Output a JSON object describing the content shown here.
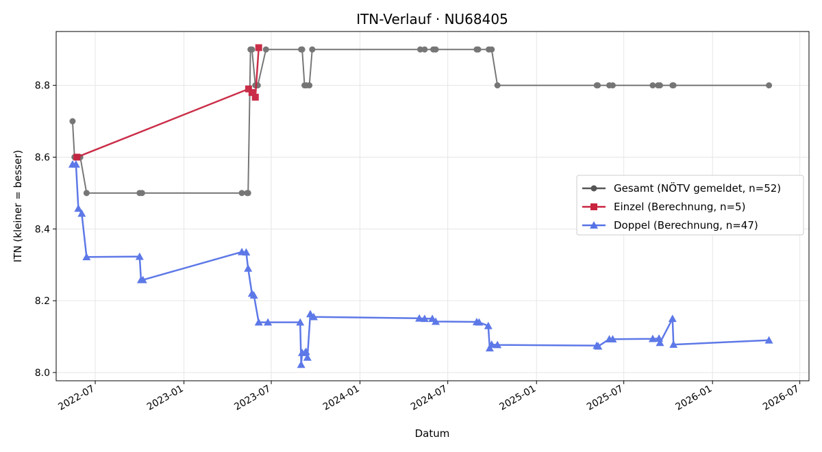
{
  "chart_data": {
    "type": "line",
    "title": "ITN-Verlauf · NU68405",
    "xlabel": "Datum",
    "ylabel": "ITN  (kleiner = besser)",
    "x_ticks": [
      "2022-07",
      "2023-01",
      "2023-07",
      "2024-01",
      "2024-07",
      "2025-01",
      "2025-07",
      "2026-01",
      "2026-07"
    ],
    "y_ticks": [
      "8.0",
      "8.2",
      "8.4",
      "8.6",
      "8.8"
    ],
    "xlim": [
      "2022-04-11",
      "2026-07-20"
    ],
    "ylim": [
      7.977,
      8.95
    ],
    "grid": true,
    "legend_position": "center-right",
    "series": [
      {
        "name": "Gesamt (NÖTV gemeldet, n=52)",
        "color": "#555555",
        "marker": "circle",
        "points": [
          [
            "2022-05-15",
            8.7
          ],
          [
            "2022-05-19",
            8.6
          ],
          [
            "2022-05-23",
            8.6
          ],
          [
            "2022-05-27",
            8.6
          ],
          [
            "2022-05-31",
            8.6
          ],
          [
            "2022-06-13",
            8.5
          ],
          [
            "2022-10-01",
            8.5
          ],
          [
            "2022-10-06",
            8.5
          ],
          [
            "2023-05-01",
            8.5
          ],
          [
            "2023-05-12",
            8.5
          ],
          [
            "2023-05-14",
            8.5
          ],
          [
            "2023-05-19",
            8.9
          ],
          [
            "2023-05-22",
            8.9
          ],
          [
            "2023-05-29",
            8.8
          ],
          [
            "2023-06-03",
            8.8
          ],
          [
            "2023-06-20",
            8.9
          ],
          [
            "2023-09-01",
            8.9
          ],
          [
            "2023-09-03",
            8.9
          ],
          [
            "2023-09-08",
            8.8
          ],
          [
            "2023-09-12",
            8.8
          ],
          [
            "2023-09-18",
            8.8
          ],
          [
            "2023-09-24",
            8.9
          ],
          [
            "2024-05-05",
            8.9
          ],
          [
            "2024-05-14",
            8.9
          ],
          [
            "2024-06-01",
            8.9
          ],
          [
            "2024-06-06",
            8.9
          ],
          [
            "2024-08-30",
            8.9
          ],
          [
            "2024-09-02",
            8.9
          ],
          [
            "2024-09-24",
            8.9
          ],
          [
            "2024-09-30",
            8.9
          ],
          [
            "2024-10-12",
            8.8
          ],
          [
            "2025-05-06",
            8.8
          ],
          [
            "2025-05-08",
            8.8
          ],
          [
            "2025-06-01",
            8.8
          ],
          [
            "2025-06-08",
            8.8
          ],
          [
            "2025-08-30",
            8.8
          ],
          [
            "2025-09-10",
            8.8
          ],
          [
            "2025-09-14",
            8.8
          ],
          [
            "2025-10-10",
            8.8
          ],
          [
            "2025-10-12",
            8.8
          ],
          [
            "2026-04-28",
            8.8
          ]
        ]
      },
      {
        "name": "Einzel (Berechnung, n=5)",
        "color": "#c8233f",
        "marker": "square",
        "points": [
          [
            "2022-05-24",
            8.6
          ],
          [
            "2023-05-15",
            8.79
          ],
          [
            "2023-05-22",
            8.78
          ],
          [
            "2023-05-29",
            8.767
          ],
          [
            "2023-06-05",
            8.905
          ]
        ]
      },
      {
        "name": "Doppel (Berechnung, n=47)",
        "color": "#5571e6",
        "marker": "triangle",
        "points": [
          [
            "2022-05-15",
            8.58
          ],
          [
            "2022-05-22",
            8.58
          ],
          [
            "2022-05-27",
            8.457
          ],
          [
            "2022-06-03",
            8.443
          ],
          [
            "2022-06-13",
            8.322
          ],
          [
            "2022-10-01",
            8.323
          ],
          [
            "2022-10-04",
            8.258
          ],
          [
            "2022-10-08",
            8.258
          ],
          [
            "2023-05-01",
            8.336
          ],
          [
            "2023-05-10",
            8.335
          ],
          [
            "2023-05-14",
            8.29
          ],
          [
            "2023-05-22",
            8.22
          ],
          [
            "2023-05-26",
            8.215
          ],
          [
            "2023-06-05",
            8.14
          ],
          [
            "2023-06-24",
            8.14
          ],
          [
            "2023-08-30",
            8.14
          ],
          [
            "2023-09-01",
            8.022
          ],
          [
            "2023-09-03",
            8.055
          ],
          [
            "2023-09-09",
            8.055
          ],
          [
            "2023-09-11",
            8.058
          ],
          [
            "2023-09-14",
            8.042
          ],
          [
            "2023-09-20",
            8.163
          ],
          [
            "2023-09-27",
            8.155
          ],
          [
            "2024-05-03",
            8.151
          ],
          [
            "2024-05-14",
            8.15
          ],
          [
            "2024-05-30",
            8.15
          ],
          [
            "2024-06-06",
            8.142
          ],
          [
            "2024-08-30",
            8.141
          ],
          [
            "2024-09-04",
            8.14
          ],
          [
            "2024-09-23",
            8.13
          ],
          [
            "2024-09-26",
            8.068
          ],
          [
            "2024-09-30",
            8.078
          ],
          [
            "2024-10-12",
            8.077
          ],
          [
            "2025-05-06",
            8.075
          ],
          [
            "2025-05-09",
            8.073
          ],
          [
            "2025-06-01",
            8.093
          ],
          [
            "2025-06-08",
            8.093
          ],
          [
            "2025-08-30",
            8.094
          ],
          [
            "2025-09-12",
            8.095
          ],
          [
            "2025-09-14",
            8.083
          ],
          [
            "2025-10-10",
            8.15
          ],
          [
            "2025-10-12",
            8.078
          ],
          [
            "2026-04-28",
            8.09
          ]
        ]
      }
    ]
  }
}
